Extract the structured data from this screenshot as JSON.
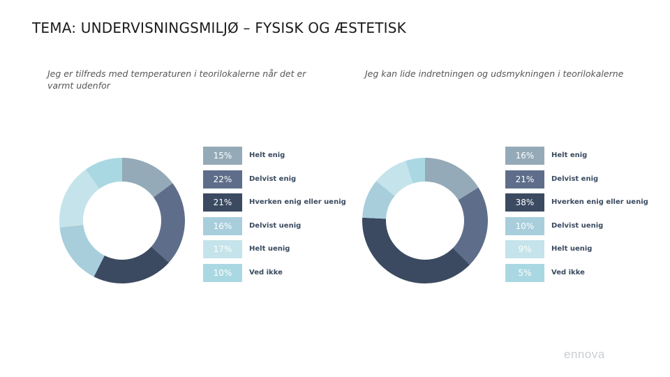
{
  "title": "TEMA: UNDERVISNINGSMILJØ – FYSISK OG ÆSTETISK",
  "logo": "ennova",
  "chart_data": [
    {
      "type": "donut",
      "title": "Jeg er tilfreds med temperaturen i teorilokalerne når det er varmt udenfor",
      "categories": [
        "Helt enig",
        "Delvist enig",
        "Hverken enig eller uenig",
        "Delvist uenig",
        "Helt uenig",
        "Ved ikke"
      ],
      "values": [
        15,
        22,
        21,
        16,
        17,
        10
      ],
      "value_labels": [
        "15%",
        "22%",
        "21%",
        "16%",
        "17%",
        "10%"
      ],
      "colors": [
        "#94aab8",
        "#5e6e8a",
        "#3b4a60",
        "#a8cedc",
        "#c5e3ea",
        "#aad8e2"
      ],
      "legend": "right"
    },
    {
      "type": "donut",
      "title": "Jeg kan lide indretningen og udsmykningen i teorilokalerne",
      "categories": [
        "Helt enig",
        "Delvist enig",
        "Hverken enig eller uenig",
        "Delvist uenig",
        "Helt uenig",
        "Ved ikke"
      ],
      "values": [
        16,
        21,
        38,
        10,
        9,
        5
      ],
      "value_labels": [
        "16%",
        "21%",
        "38%",
        "10%",
        "9%",
        "5%"
      ],
      "colors": [
        "#94aab8",
        "#5e6e8a",
        "#3b4a60",
        "#a8cedc",
        "#c5e3ea",
        "#aad8e2"
      ],
      "legend": "right"
    }
  ]
}
